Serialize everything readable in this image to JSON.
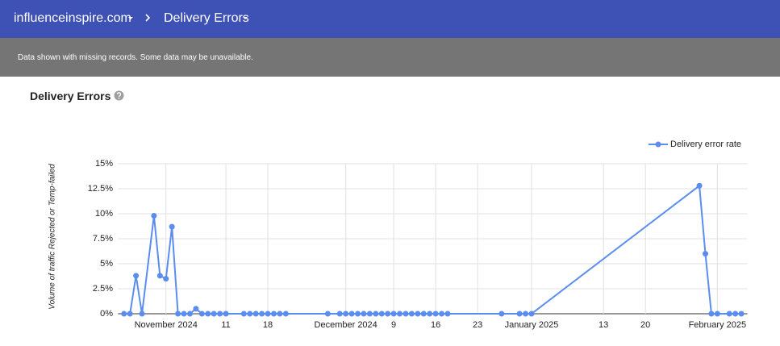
{
  "header": {
    "breadcrumb": [
      "influenceinspire.com",
      "Delivery Errors"
    ]
  },
  "banner": "Data shown with missing records. Some data may be unavailable.",
  "section_title": "Delivery Errors",
  "chart_data": {
    "type": "line",
    "y_label": "Volume of traffic Rejected or Temp-failed",
    "x": [
      "2024-10-25",
      "2024-10-26",
      "2024-10-27",
      "2024-10-28",
      "2024-10-30",
      "2024-10-31",
      "2024-11-01",
      "2024-11-02",
      "2024-11-03",
      "2024-11-04",
      "2024-11-05",
      "2024-11-06",
      "2024-11-07",
      "2024-11-08",
      "2024-11-09",
      "2024-11-10",
      "2024-11-11",
      "2024-11-14",
      "2024-11-15",
      "2024-11-16",
      "2024-11-17",
      "2024-11-18",
      "2024-11-19",
      "2024-11-20",
      "2024-11-21",
      "2024-11-28",
      "2024-11-30",
      "2024-12-01",
      "2024-12-02",
      "2024-12-03",
      "2024-12-04",
      "2024-12-05",
      "2024-12-06",
      "2024-12-07",
      "2024-12-08",
      "2024-12-09",
      "2024-12-10",
      "2024-12-11",
      "2024-12-12",
      "2024-12-13",
      "2024-12-14",
      "2024-12-15",
      "2024-12-16",
      "2024-12-17",
      "2024-12-18",
      "2024-12-27",
      "2024-12-30",
      "2024-12-31",
      "2025-01-01",
      "2025-01-29",
      "2025-01-30",
      "2025-01-31",
      "2025-02-01",
      "2025-02-03",
      "2025-02-04",
      "2025-02-05"
    ],
    "series": [
      {
        "name": "Delivery error rate",
        "color": "#5b8def",
        "values": [
          0,
          0,
          3.8,
          0,
          9.8,
          3.8,
          3.5,
          8.7,
          0,
          0,
          0,
          0.5,
          0,
          0,
          0,
          0,
          0,
          0,
          0,
          0,
          0,
          0,
          0,
          0,
          0,
          0,
          0,
          0,
          0,
          0,
          0,
          0,
          0,
          0,
          0,
          0,
          0,
          0,
          0,
          0,
          0,
          0,
          0,
          0,
          0,
          0,
          0,
          0,
          0,
          12.8,
          6,
          0,
          0,
          0,
          0,
          0
        ]
      }
    ],
    "xlim": [
      "2024-10-24",
      "2025-02-06"
    ],
    "xticks": [
      {
        "value": "2024-11-01",
        "label": "November 2024"
      },
      {
        "value": "2024-11-11",
        "label": "11"
      },
      {
        "value": "2024-11-18",
        "label": "18"
      },
      {
        "value": "2024-12-01",
        "label": "December 2024"
      },
      {
        "value": "2024-12-09",
        "label": "9"
      },
      {
        "value": "2024-12-16",
        "label": "16"
      },
      {
        "value": "2024-12-23",
        "label": "23"
      },
      {
        "value": "2025-01-01",
        "label": "January 2025"
      },
      {
        "value": "2025-01-13",
        "label": "13"
      },
      {
        "value": "2025-01-20",
        "label": "20"
      },
      {
        "value": "2025-02-01",
        "label": "February 2025"
      }
    ],
    "ylim": [
      0,
      15
    ],
    "yticks": [
      {
        "value": 0,
        "label": "0%"
      },
      {
        "value": 2.5,
        "label": "2.5%"
      },
      {
        "value": 5,
        "label": "5%"
      },
      {
        "value": 7.5,
        "label": "7.5%"
      },
      {
        "value": 10,
        "label": "10%"
      },
      {
        "value": 12.5,
        "label": "12.5%"
      },
      {
        "value": 15,
        "label": "15%"
      }
    ],
    "grid": true,
    "legend": "top-right"
  }
}
